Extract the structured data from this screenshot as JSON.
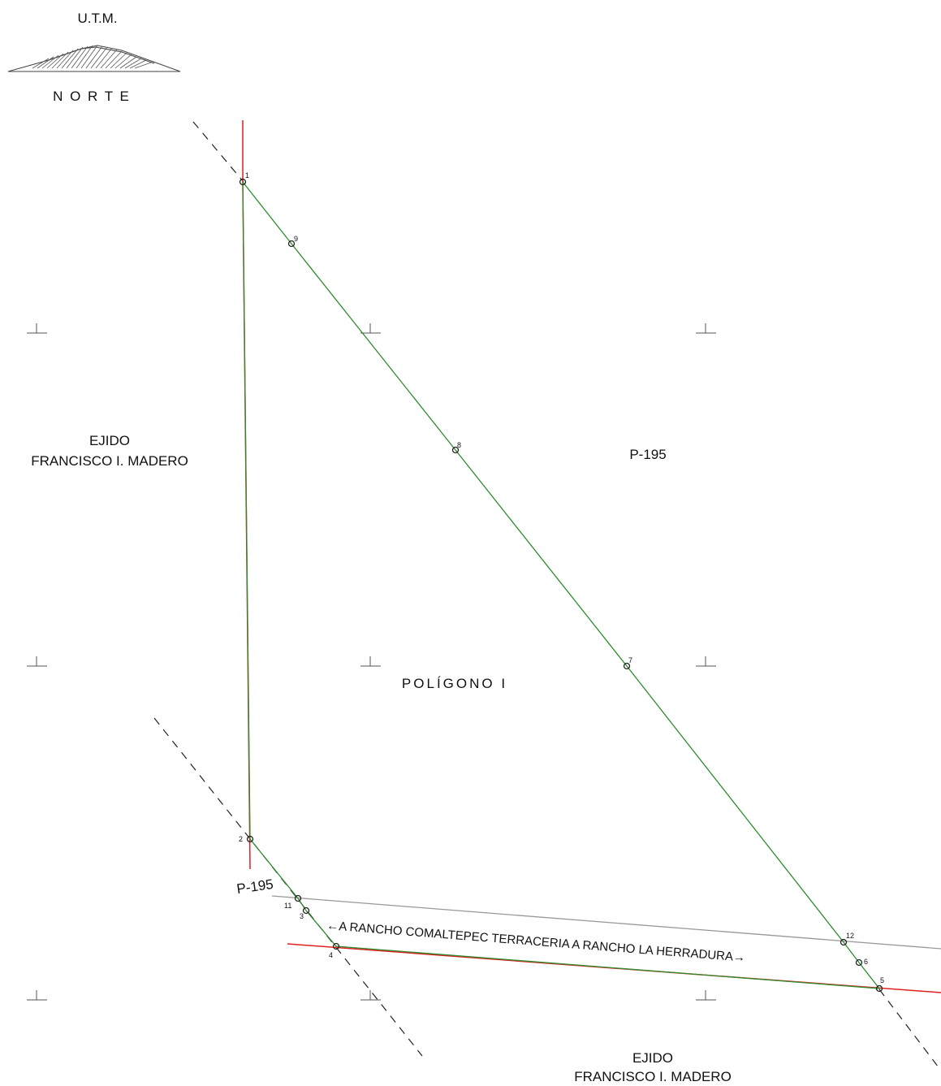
{
  "north_arrow": {
    "system": "U.T.M.",
    "label": "N O R T E"
  },
  "regions": {
    "ejido_west": {
      "line1": "EJIDO",
      "line2": "FRANCISCO I. MADERO"
    },
    "ejido_south": {
      "line1": "EJIDO",
      "line2": "FRANCISCO I. MADERO"
    },
    "parcel_east": "P-195",
    "parcel_southwest": "P-195",
    "polygon": "POLÍGONO   I"
  },
  "road_label": "←A RANCHO COMALTEPEC TERRACERIA A RANCHO LA HERRADURA→",
  "vertices": [
    "1",
    "2",
    "3",
    "4",
    "5",
    "6",
    "7",
    "8",
    "9",
    "11",
    "12"
  ],
  "colors": {
    "boundary": "#2e8b2e",
    "adjacent": "#e02020",
    "road": "#999999",
    "dashed": "#222222"
  }
}
